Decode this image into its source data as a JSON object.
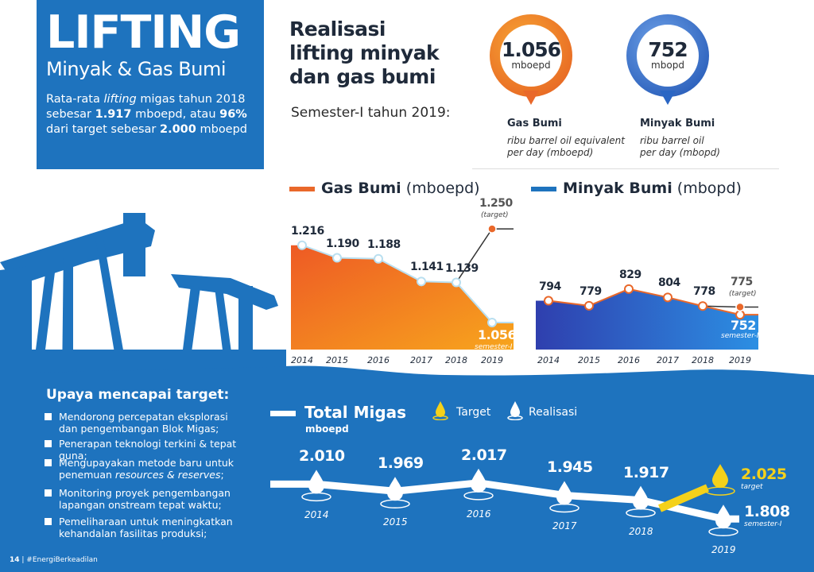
{
  "title": {
    "main": "LIFTING",
    "sub": "Minyak & Gas Bumi",
    "desc_pre": "Rata-rata ",
    "desc_italic": "lifting",
    "desc_mid1": " migas tahun 2018 sebesar ",
    "desc_val1": "1.917",
    "desc_mid2": " mboepd, atau ",
    "desc_pct": "96%",
    "desc_mid3": " dari target sebesar ",
    "desc_val2": "2.000",
    "desc_end": " mboepd"
  },
  "heading": {
    "line1": "Realisasi",
    "line2": "lifting minyak",
    "line3": "dan gas bumi",
    "sub": "Semester-I tahun 2019:"
  },
  "gas_pin": {
    "value": "1.056",
    "unit": "mboepd",
    "label": "Gas Bumi",
    "desc1": "ribu barrel oil equivalent",
    "desc2": "per day (mboepd)"
  },
  "oil_pin": {
    "value": "752",
    "unit": "mbopd",
    "label": "Minyak Bumi",
    "desc1": "ribu barrel oil",
    "desc2": "per day (mbopd)"
  },
  "colors": {
    "blue": "#1e73be",
    "orange": "#e9682a",
    "yellow": "#f4d11a"
  },
  "chart_data": [
    {
      "type": "area",
      "legend_bold": "Gas Bumi",
      "legend_unit": "(mboepd)",
      "x": [
        "2014",
        "2015",
        "2016",
        "2017",
        "2018",
        "2019"
      ],
      "values": [
        1216,
        1190,
        1188,
        1141,
        1139,
        1056
      ],
      "labels": [
        "1.216",
        "1.190",
        "1.188",
        "1.141",
        "1.139",
        "1.056"
      ],
      "target": 1250,
      "target_label": "1.250",
      "target_note": "(target)",
      "actual_note": "semester-I"
    },
    {
      "type": "area",
      "legend_bold": "Minyak Bumi",
      "legend_unit": "(mbopd)",
      "x": [
        "2014",
        "2015",
        "2016",
        "2017",
        "2018",
        "2019"
      ],
      "values": [
        794,
        779,
        829,
        804,
        778,
        752
      ],
      "labels": [
        "794",
        "779",
        "829",
        "804",
        "778",
        "752"
      ],
      "target": 775,
      "target_label": "775",
      "target_note": "(target)",
      "actual_note": "semester-I"
    },
    {
      "type": "line",
      "title": "Total Migas",
      "unit": "mboepd",
      "legend_target": "Target",
      "legend_actual": "Realisasi",
      "x": [
        "2014",
        "2015",
        "2016",
        "2017",
        "2018",
        "2019"
      ],
      "values": [
        2010,
        1969,
        2017,
        1945,
        1917,
        1808
      ],
      "labels": [
        "2.010",
        "1.969",
        "2.017",
        "1.945",
        "1.917",
        "1.808"
      ],
      "target": 2025,
      "target_label": "2.025",
      "target_note": "target",
      "actual_note": "semester-I"
    }
  ],
  "upaya": {
    "title": "Upaya mencapai target:",
    "items": [
      {
        "l1": "Mendorong percepatan eksplorasi",
        "l2": "dan pengembangan Blok Migas;"
      },
      {
        "l1": "Penerapan teknologi terkini & tepat guna;",
        "l2": ""
      },
      {
        "l1": "Mengupayakan metode baru untuk",
        "l2a": "penemuan ",
        "l2i": "resources & reserves",
        "l2b": ";"
      },
      {
        "l1": "Monitoring proyek pengembangan",
        "l2": "lapangan onstream tepat waktu;"
      },
      {
        "l1": "Pemeliharaan untuk meningkatkan",
        "l2": "kehandalan fasilitas produksi;"
      }
    ]
  },
  "footer": {
    "page": "14",
    "sep": " | ",
    "tag": "#EnergiBerkeadilan"
  }
}
